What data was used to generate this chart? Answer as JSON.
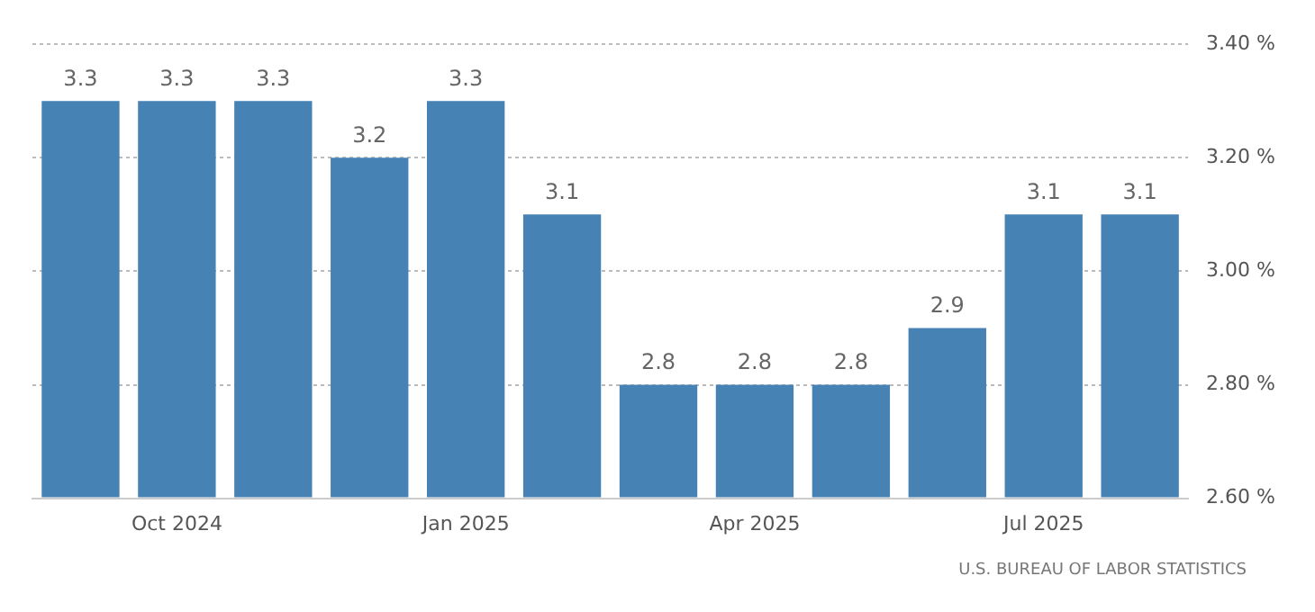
{
  "chart_data": {
    "type": "bar",
    "categories": [
      null,
      "Oct 2024",
      null,
      null,
      "Jan 2025",
      null,
      null,
      "Apr 2025",
      null,
      null,
      "Jul 2025",
      null
    ],
    "values": [
      3.3,
      3.3,
      3.3,
      3.2,
      3.3,
      3.1,
      2.8,
      2.8,
      2.8,
      2.9,
      3.1,
      3.1
    ],
    "color": "#4682b4",
    "ylim": [
      2.6,
      3.4
    ],
    "yticks": [
      {
        "value": 2.6,
        "label": "2.60 %"
      },
      {
        "value": 2.8,
        "label": "2.80 %"
      },
      {
        "value": 3.0,
        "label": "3.00 %"
      },
      {
        "value": 3.2,
        "label": "3.20 %"
      },
      {
        "value": 3.4,
        "label": "3.40 %"
      }
    ],
    "grid": "y",
    "data_labels": true,
    "annotations": [
      "U.S. BUREAU OF LABOR STATISTICS"
    ]
  }
}
